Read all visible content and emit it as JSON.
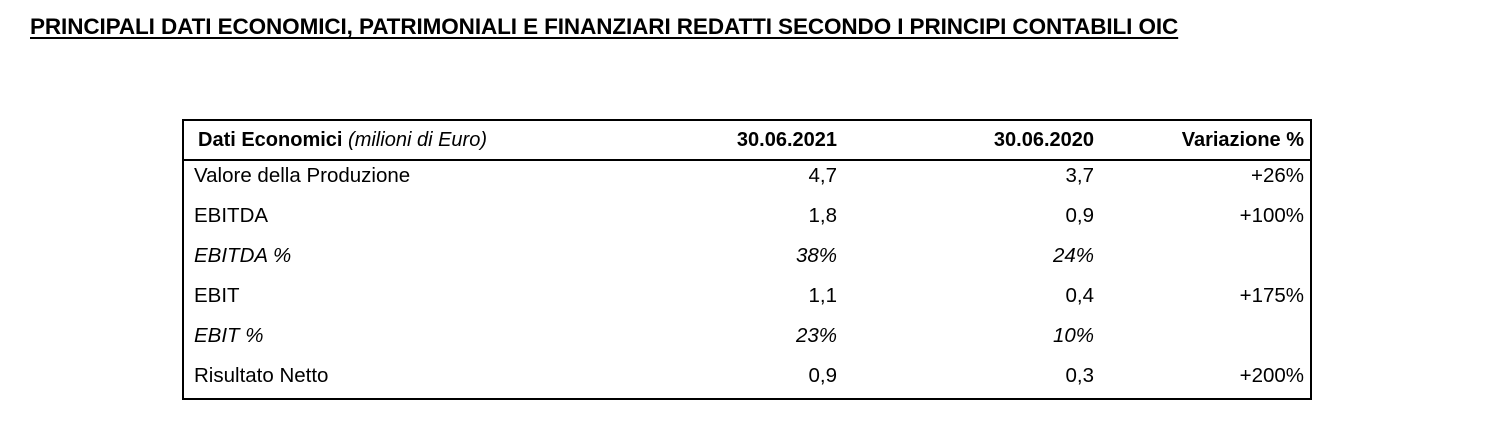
{
  "title": "PRINCIPALI DATI ECONOMICI, PATRIMONIALI E FINANZIARI REDATTI SECONDO I PRINCIPI CONTABILI OIC",
  "table": {
    "header": {
      "label": "Dati Economici",
      "unit": "(milioni di Euro)",
      "col1": "30.06.2021",
      "col2": "30.06.2020",
      "col3": "Variazione %"
    },
    "rows": [
      {
        "label": "Valore della Produzione",
        "v2021": "4,7",
        "v2020": "3,7",
        "change": "+26%",
        "italic": false
      },
      {
        "label": "EBITDA",
        "v2021": "1,8",
        "v2020": "0,9",
        "change": "+100%",
        "italic": false
      },
      {
        "label": "EBITDA %",
        "v2021": "38%",
        "v2020": "24%",
        "change": "",
        "italic": true
      },
      {
        "label": "EBIT",
        "v2021": "1,1",
        "v2020": "0,4",
        "change": "+175%",
        "italic": false
      },
      {
        "label": "EBIT %",
        "v2021": "23%",
        "v2020": "10%",
        "change": "",
        "italic": true
      },
      {
        "label": "Risultato Netto",
        "v2021": "0,9",
        "v2020": "0,3",
        "change": "+200%",
        "italic": false
      }
    ]
  }
}
